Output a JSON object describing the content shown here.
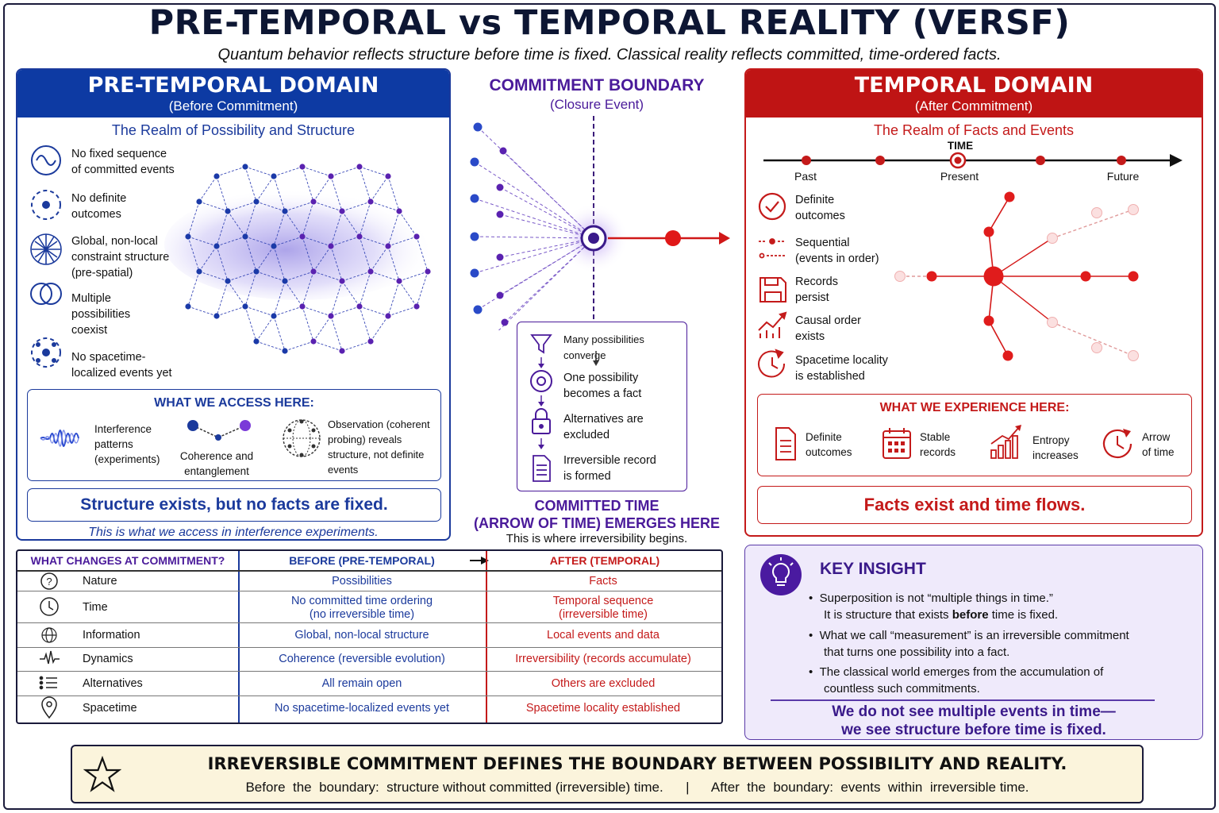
{
  "title": "PRE-TEMPORAL vs TEMPORAL REALITY (VERSF)",
  "subtitle": "Quantum behavior reflects structure before time is fixed.  Classical reality reflects committed, time-ordered facts.",
  "left": {
    "header": "PRE-TEMPORAL DOMAIN",
    "subheader": "(Before Commitment)",
    "realm": "The Realm of Possibility and Structure",
    "features": [
      {
        "line1": "No fixed sequence",
        "line2": "of committed events",
        "icon": "wave-circle-icon"
      },
      {
        "line1": "No definite",
        "line2": "outcomes",
        "icon": "dashed-dot-circle-icon"
      },
      {
        "line1": "Global, non-local",
        "line2": "constraint structure",
        "line3": "(pre-spatial)",
        "icon": "network-globe-icon"
      },
      {
        "line1": "Multiple",
        "line2": "possibilities",
        "line3": "coexist",
        "icon": "overlapping-circles-icon"
      },
      {
        "line1": "No spacetime-",
        "line2": "localized events yet",
        "icon": "dashed-dots-circle-icon"
      }
    ],
    "access_title": "WHAT WE ACCESS HERE:",
    "access": [
      {
        "line1": "Interference",
        "line2": "patterns",
        "line3": "(experiments)"
      },
      {
        "line1": "Coherence and",
        "line2": "entanglement"
      },
      {
        "line1": "Observation (coherent",
        "line2": "probing) reveals",
        "line3": "structure, not definite",
        "line4": "events"
      }
    ],
    "summary": "Structure exists, but no facts are fixed.",
    "note": "This is what we access in interference experiments."
  },
  "center": {
    "title": "COMMITMENT BOUNDARY",
    "subtitle": "(Closure Event)",
    "steps": [
      {
        "line1": "Many possibilities converge",
        "line2": ""
      },
      {
        "line1": "One possibility",
        "line2": "becomes a fact"
      },
      {
        "line1": "Alternatives are",
        "line2": "excluded"
      },
      {
        "line1": "Irreversible record",
        "line2": "is formed"
      }
    ],
    "emerge1": "COMMITTED TIME",
    "emerge2": "(ARROW OF TIME) EMERGES HERE",
    "emerge3": "This is where irreversibility begins."
  },
  "right": {
    "header": "TEMPORAL DOMAIN",
    "subheader": "(After Commitment)",
    "realm": "The Realm of Facts and Events",
    "timeline": {
      "time": "TIME",
      "past": "Past",
      "present": "Present",
      "future": "Future"
    },
    "features": [
      {
        "line1": "Definite",
        "line2": "outcomes",
        "icon": "check-circle-icon"
      },
      {
        "line1": "Sequential",
        "line2": "(events in order)",
        "icon": "sequence-icon"
      },
      {
        "line1": "Records",
        "line2": "persist",
        "icon": "floppy-disk-icon"
      },
      {
        "line1": "Causal order",
        "line2": "exists",
        "icon": "trend-arrow-icon"
      },
      {
        "line1": "Spacetime locality",
        "line2": "is established",
        "icon": "clock-arrow-icon"
      }
    ],
    "experience_title": "WHAT WE EXPERIENCE HERE:",
    "experience": [
      {
        "line1": "Definite",
        "line2": "outcomes"
      },
      {
        "line1": "Stable",
        "line2": "records"
      },
      {
        "line1": "Entropy",
        "line2": "increases"
      },
      {
        "line1": "Arrow",
        "line2": "of time"
      }
    ],
    "summary": "Facts exist and time flows."
  },
  "table": {
    "headers": {
      "what": "WHAT CHANGES AT COMMITMENT?",
      "before": "BEFORE (PRE-TEMPORAL)",
      "after": "AFTER (TEMPORAL)"
    },
    "rows": [
      {
        "label": "Nature",
        "before1": "Possibilities",
        "before2": "",
        "after1": "Facts",
        "after2": ""
      },
      {
        "label": "Time",
        "before1": "No committed time ordering",
        "before2": "(no irreversible time)",
        "after1": "Temporal sequence",
        "after2": "(irreversible time)"
      },
      {
        "label": "Information",
        "before1": "Global, non-local structure",
        "before2": "",
        "after1": "Local events and data",
        "after2": ""
      },
      {
        "label": "Dynamics",
        "before1": "Coherence (reversible evolution)",
        "before2": "",
        "after1": "Irreversibility (records accumulate)",
        "after2": ""
      },
      {
        "label": "Alternatives",
        "before1": "All remain open",
        "before2": "",
        "after1": "Others are excluded",
        "after2": ""
      },
      {
        "label": "Spacetime",
        "before1": "No spacetime-localized events yet",
        "before2": "",
        "after1": "Spacetime locality established",
        "after2": ""
      }
    ]
  },
  "insight": {
    "title": "KEY INSIGHT",
    "b1a": "Superposition is not “multiple things in time.”",
    "b1b_pre": "It is structure that exists ",
    "b1b_bold": "before",
    "b1b_post": " time is fixed.",
    "b2a": "What we call “measurement” is an irreversible commitment",
    "b2b": "that turns one possibility into a fact.",
    "b3a": "The classical world emerges from the accumulation of",
    "b3b": "countless such commitments.",
    "close1": "We do not see multiple events in time—",
    "close2": "we see structure before time is fixed."
  },
  "bottom": {
    "headline": "IRREVERSIBLE COMMITMENT DEFINES THE BOUNDARY BETWEEN POSSIBILITY AND REALITY.",
    "before": "Before  the  boundary:  structure without committed (irreversible) time.",
    "sep": "|",
    "after": "After  the  boundary:  events  within  irreversible time."
  },
  "colors": {
    "blue": "#0d3aa3",
    "red": "#bf1414",
    "purple": "#4a1a9a"
  }
}
